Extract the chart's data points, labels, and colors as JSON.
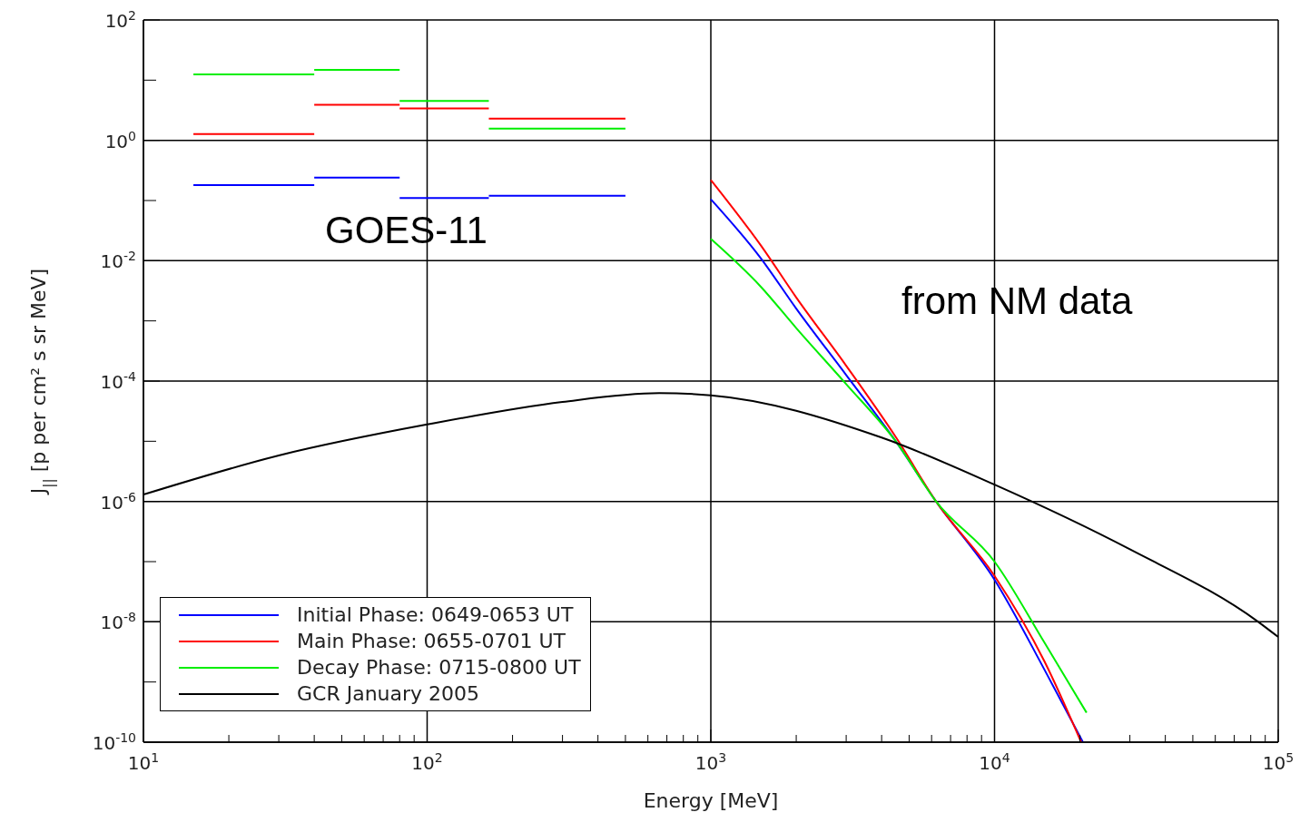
{
  "chart_data": {
    "type": "line",
    "xlabel": "Energy   [MeV]",
    "ylabel": "J$_{||}$ [p per cm² s sr MeV]",
    "log": "xy",
    "xlim": [
      10,
      100000
    ],
    "ylim": [
      1e-10,
      100
    ],
    "xticks": [
      {
        "value": 10,
        "label": "10$^{1}$"
      },
      {
        "value": 20,
        "label": null
      },
      {
        "value": 30,
        "label": null
      },
      {
        "value": 40,
        "label": null
      },
      {
        "value": 50,
        "label": null
      },
      {
        "value": 60,
        "label": null
      },
      {
        "value": 70,
        "label": null
      },
      {
        "value": 80,
        "label": null
      },
      {
        "value": 90,
        "label": null
      },
      {
        "value": 100,
        "label": "10$^{2}$"
      },
      {
        "value": 200,
        "label": null
      },
      {
        "value": 300,
        "label": null
      },
      {
        "value": 400,
        "label": null
      },
      {
        "value": 500,
        "label": null
      },
      {
        "value": 600,
        "label": null
      },
      {
        "value": 700,
        "label": null
      },
      {
        "value": 800,
        "label": null
      },
      {
        "value": 900,
        "label": null
      },
      {
        "value": 1000,
        "label": "10$^{3}$"
      },
      {
        "value": 2000,
        "label": null
      },
      {
        "value": 3000,
        "label": null
      },
      {
        "value": 4000,
        "label": null
      },
      {
        "value": 5000,
        "label": null
      },
      {
        "value": 6000,
        "label": null
      },
      {
        "value": 7000,
        "label": null
      },
      {
        "value": 8000,
        "label": null
      },
      {
        "value": 9000,
        "label": null
      },
      {
        "value": 10000,
        "label": "10$^{4}$"
      },
      {
        "value": 20000,
        "label": null
      },
      {
        "value": 30000,
        "label": null
      },
      {
        "value": 40000,
        "label": null
      },
      {
        "value": 50000,
        "label": null
      },
      {
        "value": 60000,
        "label": null
      },
      {
        "value": 70000,
        "label": null
      },
      {
        "value": 80000,
        "label": null
      },
      {
        "value": 90000,
        "label": null
      },
      {
        "value": 100000,
        "label": "10$^{5}$"
      }
    ],
    "yticks": [
      {
        "value": 1e-10,
        "label": "10$^{-10}$"
      },
      {
        "value": 1e-09,
        "label": null
      },
      {
        "value": 1e-08,
        "label": "10$^{-8}$"
      },
      {
        "value": 1e-07,
        "label": null
      },
      {
        "value": 1e-06,
        "label": "10$^{-6}$"
      },
      {
        "value": 1e-05,
        "label": null
      },
      {
        "value": 0.0001,
        "label": "10$^{-4}$"
      },
      {
        "value": 0.001,
        "label": null
      },
      {
        "value": 0.01,
        "label": "10$^{-2}$"
      },
      {
        "value": 0.1,
        "label": null
      },
      {
        "value": 1,
        "label": "10$^{0}$"
      },
      {
        "value": 10,
        "label": null
      },
      {
        "value": 100,
        "label": "10$^{2}$"
      }
    ],
    "grid": true,
    "legend": "bottom left",
    "marker": "none",
    "line_style": "solid",
    "annotations": [
      "GOES-11",
      "from NM data"
    ],
    "series": [
      {
        "name": "Initial Phase: 0649-0653 UT",
        "color": "#0000ff",
        "x": [
          1000,
          1500,
          2000,
          3000,
          4500,
          6220,
          10000,
          15000,
          20500
        ],
        "values": [
          0.105,
          0.011,
          0.0016,
          0.000126,
          9.8e-06,
          1e-06,
          5e-08,
          1.6e-09,
          1e-10
        ]
      },
      {
        "name": "Main Phase: 0655-0701 UT",
        "color": "#ff0000",
        "x": [
          1000,
          1500,
          2000,
          3000,
          4500,
          6220,
          10000,
          15000,
          20200
        ],
        "values": [
          0.22,
          0.018,
          0.00245,
          0.00018,
          1.15e-05,
          1e-06,
          5.8e-08,
          2.2e-09,
          1e-10
        ]
      },
      {
        "name": "Decay Phase: 0715-0800 UT",
        "color": "#00ee00",
        "x": [
          1000,
          1500,
          2000,
          3000,
          4500,
          6220,
          10000,
          15000,
          21100
        ],
        "values": [
          0.023,
          0.0037,
          0.00076,
          8.9e-05,
          9.8e-06,
          1e-06,
          1e-07,
          4.5e-09,
          3.1e-10
        ]
      },
      {
        "color": "#0000ff",
        "x": [
          15,
          40
        ],
        "values": [
          0.18,
          0.18
        ]
      },
      {
        "color": "#0000ff",
        "x": [
          40,
          80
        ],
        "values": [
          0.24,
          0.24
        ]
      },
      {
        "color": "#0000ff",
        "x": [
          80,
          165
        ],
        "values": [
          0.11,
          0.11
        ]
      },
      {
        "color": "#0000ff",
        "x": [
          165,
          500
        ],
        "values": [
          0.12,
          0.12
        ]
      },
      {
        "color": "#ff0000",
        "x": [
          15,
          40
        ],
        "values": [
          1.27,
          1.27
        ]
      },
      {
        "color": "#ff0000",
        "x": [
          40,
          80
        ],
        "values": [
          3.9,
          3.9
        ]
      },
      {
        "color": "#ff0000",
        "x": [
          80,
          165
        ],
        "values": [
          3.4,
          3.4
        ]
      },
      {
        "color": "#ff0000",
        "x": [
          165,
          500
        ],
        "values": [
          2.3,
          2.3
        ]
      },
      {
        "color": "#00ee00",
        "x": [
          15,
          40
        ],
        "values": [
          12.5,
          12.5
        ]
      },
      {
        "color": "#00ee00",
        "x": [
          40,
          80
        ],
        "values": [
          14.8,
          14.8
        ]
      },
      {
        "color": "#00ee00",
        "x": [
          80,
          165
        ],
        "values": [
          4.5,
          4.5
        ]
      },
      {
        "color": "#00ee00",
        "x": [
          165,
          500
        ],
        "values": [
          1.56,
          1.56
        ]
      },
      {
        "name": "GCR January 2005",
        "color": "#000000",
        "x": [
          10,
          30,
          100,
          300,
          658,
          1000,
          4000,
          10000,
          30000,
          85000,
          100000
        ],
        "values": [
          1.3e-06,
          5.8e-06,
          1.9e-05,
          4.5e-05,
          6.3e-05,
          5.8e-05,
          1.15e-05,
          1.9e-06,
          1.6e-07,
          1e-08,
          5.6e-09
        ]
      }
    ]
  }
}
